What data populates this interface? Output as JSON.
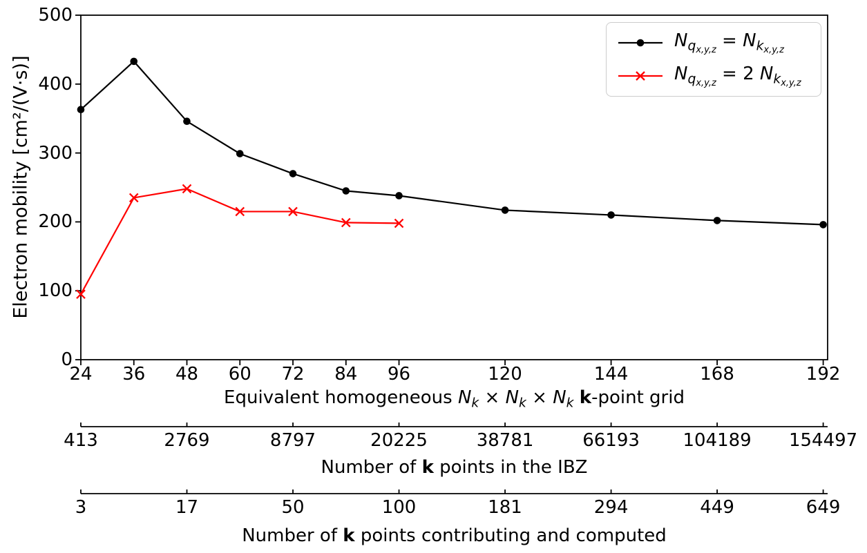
{
  "figure": {
    "background": "#ffffff",
    "axis_color": "#000000",
    "legend_border_color": "#cccccc"
  },
  "chart_data": {
    "type": "line",
    "title": "",
    "ylabel": "Electron mobility [cm²/(V·s)]",
    "xlabel_text": "Equivalent homogeneous Nk × Nk × Nk k-point grid",
    "xlabel_segments": [
      {
        "t": "Equivalent homogeneous ",
        "s": "n"
      },
      {
        "t": "N",
        "s": "i"
      },
      {
        "t": "k",
        "s": "sub"
      },
      {
        "t": " × ",
        "s": "n"
      },
      {
        "t": "N",
        "s": "i"
      },
      {
        "t": "k",
        "s": "sub"
      },
      {
        "t": " × ",
        "s": "n"
      },
      {
        "t": "N",
        "s": "i"
      },
      {
        "t": "k",
        "s": "sub"
      },
      {
        "t": " ",
        "s": "n"
      },
      {
        "t": "k",
        "s": "b"
      },
      {
        "t": "-point grid",
        "s": "n"
      }
    ],
    "xlim": [
      24,
      193
    ],
    "ylim": [
      0,
      500
    ],
    "x_ticks": [
      24,
      36,
      48,
      60,
      72,
      84,
      96,
      120,
      144,
      168,
      192
    ],
    "y_ticks": [
      0,
      100,
      200,
      300,
      400,
      500
    ],
    "grid": false,
    "legend_position": "upper right",
    "series": [
      {
        "name": "Nq,x,y,z = Nk,x,y,z",
        "label_segments": [
          {
            "t": "N",
            "s": "i"
          },
          {
            "t": "q",
            "s": "sub"
          },
          {
            "t": "x,y,z",
            "s": "sub2"
          },
          {
            "t": " = ",
            "s": "n"
          },
          {
            "t": "N",
            "s": "i"
          },
          {
            "t": "k",
            "s": "sub"
          },
          {
            "t": "x,y,z",
            "s": "sub2"
          }
        ],
        "color": "#000000",
        "marker": "circle",
        "x": [
          24,
          36,
          48,
          60,
          72,
          84,
          96,
          120,
          144,
          168,
          192
        ],
        "y": [
          363,
          433,
          346,
          299,
          270,
          245,
          238,
          217,
          210,
          202,
          196
        ]
      },
      {
        "name": "Nq,x,y,z = 2 Nk,x,y,z",
        "label_segments": [
          {
            "t": "N",
            "s": "i"
          },
          {
            "t": "q",
            "s": "sub"
          },
          {
            "t": "x,y,z",
            "s": "sub2"
          },
          {
            "t": " = 2 ",
            "s": "n"
          },
          {
            "t": "N",
            "s": "i"
          },
          {
            "t": "k",
            "s": "sub"
          },
          {
            "t": "x,y,z",
            "s": "sub2"
          }
        ],
        "color": "#ff0000",
        "marker": "x",
        "x": [
          24,
          36,
          48,
          60,
          72,
          84,
          96
        ],
        "y": [
          95,
          235,
          248,
          215,
          215,
          199,
          198
        ]
      }
    ],
    "secondary_x_axes": [
      {
        "label_text": "Number of k points in the IBZ",
        "label_segments": [
          {
            "t": "Number of ",
            "s": "n"
          },
          {
            "t": "k",
            "s": "b"
          },
          {
            "t": " points in the IBZ",
            "s": "n"
          }
        ],
        "tick_at_equivalent": [
          24,
          48,
          72,
          96,
          120,
          144,
          168,
          192
        ],
        "tick_labels": [
          "413",
          "2769",
          "8797",
          "20225",
          "38781",
          "66193",
          "104189",
          "154497"
        ]
      },
      {
        "label_text": "Number of k points contributing and computed",
        "label_segments": [
          {
            "t": "Number of ",
            "s": "n"
          },
          {
            "t": "k",
            "s": "b"
          },
          {
            "t": " points contributing and computed",
            "s": "n"
          }
        ],
        "tick_at_equivalent": [
          24,
          48,
          72,
          96,
          120,
          144,
          168,
          192
        ],
        "tick_labels": [
          "3",
          "17",
          "50",
          "100",
          "181",
          "294",
          "449",
          "649"
        ]
      }
    ]
  }
}
